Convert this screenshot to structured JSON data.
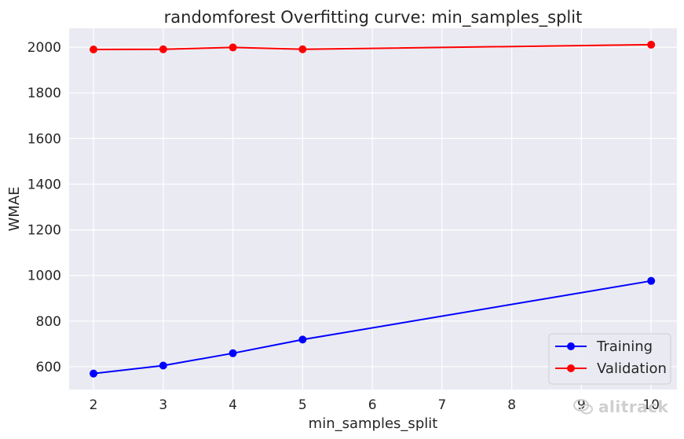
{
  "chart_data": {
    "type": "line",
    "title": "randomforest Overfitting curve: min_samples_split",
    "xlabel": "min_samples_split",
    "ylabel": "WMAE",
    "x": [
      2,
      3,
      4,
      5,
      10
    ],
    "xticks": [
      "2",
      "3",
      "4",
      "5",
      "6",
      "7",
      "8",
      "9",
      "10"
    ],
    "yticks": [
      "600",
      "800",
      "1000",
      "1200",
      "1400",
      "1600",
      "1800",
      "2000"
    ],
    "xlim": [
      1.65,
      10.37
    ],
    "ylim": [
      500,
      2083
    ],
    "grid": true,
    "legend_position": "lower-right",
    "series": [
      {
        "name": "Training",
        "color": "#0000ff",
        "values": [
          570,
          605,
          659,
          719,
          976
        ]
      },
      {
        "name": "Validation",
        "color": "#ff0000",
        "values": [
          1990,
          1991,
          1999,
          1991,
          2011
        ]
      }
    ]
  },
  "watermark": {
    "text": "alitrack"
  }
}
